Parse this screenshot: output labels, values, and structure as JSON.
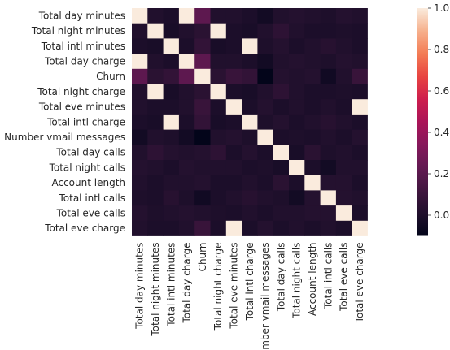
{
  "chart_data": {
    "type": "heatmap",
    "title": "",
    "xlabel": "",
    "ylabel": "",
    "rows": [
      "Total day minutes",
      "Total night minutes",
      "Total intl minutes",
      "Total day charge",
      "Churn",
      "Total night charge",
      "Total eve minutes",
      "Total intl charge",
      "Number vmail messages",
      "Total day calls",
      "Total night calls",
      "Account length",
      "Total intl calls",
      "Total eve calls",
      "Total eve charge"
    ],
    "columns": [
      "Total day minutes",
      "Total night minutes",
      "Total intl minutes",
      "Total day charge",
      "Churn",
      "Total night charge",
      "Total eve minutes",
      "Total intl charge",
      "Number vmail messages",
      "Total day calls",
      "Total night calls",
      "Account length",
      "Total intl calls",
      "Total eve calls",
      "Total eve charge"
    ],
    "values": [
      [
        1.0,
        0.01,
        -0.01,
        1.0,
        0.21,
        0.01,
        0.01,
        -0.01,
        -0.04,
        0.01,
        0.02,
        0.01,
        0.0,
        0.02,
        0.01
      ],
      [
        0.01,
        1.0,
        -0.02,
        0.01,
        0.04,
        1.0,
        -0.01,
        -0.02,
        0.01,
        0.05,
        0.01,
        -0.01,
        -0.01,
        0.0,
        -0.01
      ],
      [
        -0.01,
        -0.02,
        1.0,
        -0.01,
        0.07,
        -0.02,
        -0.01,
        1.0,
        0.0,
        0.02,
        -0.01,
        0.01,
        0.03,
        0.01,
        -0.01
      ],
      [
        1.0,
        0.01,
        -0.01,
        1.0,
        0.21,
        0.01,
        0.01,
        -0.01,
        -0.04,
        0.01,
        0.02,
        0.01,
        0.0,
        0.02,
        0.01
      ],
      [
        0.21,
        0.04,
        0.07,
        0.21,
        1.0,
        0.04,
        0.09,
        0.07,
        -0.1,
        0.02,
        0.01,
        0.02,
        -0.05,
        0.01,
        0.09
      ],
      [
        0.01,
        1.0,
        -0.02,
        0.01,
        0.04,
        1.0,
        -0.01,
        -0.02,
        0.01,
        0.05,
        0.01,
        -0.01,
        -0.01,
        0.0,
        -0.01
      ],
      [
        0.01,
        -0.01,
        -0.01,
        0.01,
        0.09,
        -0.01,
        1.0,
        -0.01,
        0.02,
        -0.01,
        0.01,
        -0.01,
        0.01,
        -0.01,
        1.0
      ],
      [
        -0.01,
        -0.02,
        1.0,
        -0.01,
        0.07,
        -0.02,
        -0.01,
        1.0,
        0.0,
        0.02,
        -0.01,
        0.01,
        0.03,
        0.01,
        -0.01
      ],
      [
        -0.04,
        0.01,
        0.0,
        -0.04,
        -0.1,
        0.01,
        0.02,
        0.0,
        1.0,
        -0.01,
        0.0,
        -0.01,
        0.01,
        -0.01,
        0.02
      ],
      [
        0.01,
        0.05,
        0.02,
        0.01,
        0.02,
        0.05,
        -0.01,
        0.02,
        -0.01,
        1.0,
        -0.02,
        0.04,
        0.0,
        0.01,
        -0.01
      ],
      [
        0.02,
        0.01,
        -0.01,
        0.02,
        0.01,
        0.01,
        0.01,
        -0.01,
        0.0,
        -0.02,
        1.0,
        -0.01,
        -0.04,
        0.01,
        0.01
      ],
      [
        0.01,
        -0.01,
        0.01,
        0.01,
        0.02,
        -0.01,
        -0.01,
        0.01,
        -0.01,
        0.04,
        -0.01,
        1.0,
        0.02,
        0.02,
        -0.01
      ],
      [
        0.0,
        -0.01,
        0.03,
        0.0,
        -0.05,
        -0.01,
        0.01,
        0.03,
        0.01,
        0.0,
        -0.04,
        0.02,
        1.0,
        0.02,
        0.01
      ],
      [
        0.02,
        0.0,
        0.01,
        0.02,
        0.01,
        0.0,
        -0.01,
        0.01,
        -0.01,
        0.01,
        0.01,
        0.02,
        0.02,
        1.0,
        -0.01
      ],
      [
        0.01,
        -0.01,
        -0.01,
        0.01,
        0.09,
        -0.01,
        1.0,
        -0.01,
        0.02,
        -0.01,
        0.01,
        -0.01,
        0.01,
        -0.01,
        1.0
      ]
    ],
    "vmin": -0.1,
    "vmax": 1.0,
    "colorbar_ticks": [
      "1.0",
      "0.8",
      "0.6",
      "0.4",
      "0.2",
      "0.0"
    ],
    "colorbar_tick_values": [
      1.0,
      0.8,
      0.6,
      0.4,
      0.2,
      0.0
    ],
    "colormap": "rocket",
    "grid": false,
    "legend": "colorbar-right"
  }
}
